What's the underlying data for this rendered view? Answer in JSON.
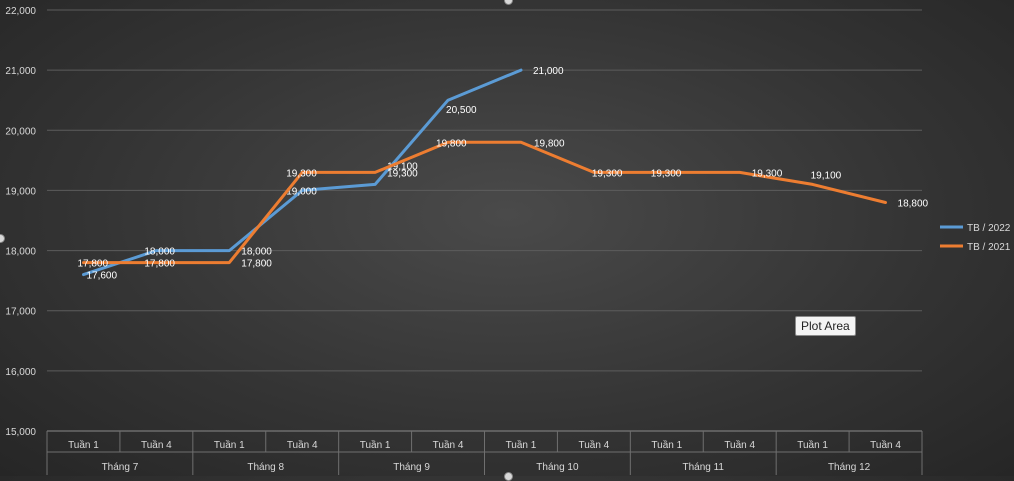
{
  "chart_data": {
    "type": "line",
    "title": "",
    "xlabel": "",
    "ylabel": "",
    "ylim": [
      15000,
      22000
    ],
    "y_ticks": [
      "15,000",
      "16,000",
      "17,000",
      "18,000",
      "19,000",
      "20,000",
      "21,000",
      "22,000"
    ],
    "categories": [
      "Tuần 1",
      "Tuần 4",
      "Tuần 1",
      "Tuần 4",
      "Tuần 1",
      "Tuần 4",
      "Tuần 1",
      "Tuần 4",
      "Tuần 1",
      "Tuần 4",
      "Tuần 1",
      "Tuần 4"
    ],
    "groups": [
      "Tháng 7",
      "Tháng 8",
      "Tháng 9",
      "Tháng 10",
      "Tháng 11",
      "Tháng 12"
    ],
    "grid": true,
    "legend_position": "right",
    "series": [
      {
        "name": "TB / 2022",
        "color": "#5b9bd5",
        "values": [
          17600,
          18000,
          18000,
          19000,
          19100,
          20500,
          21000,
          null,
          null,
          null,
          null,
          null
        ],
        "labels": [
          "17,600",
          "18,000",
          "18,000",
          "19,000",
          "19,100",
          "20,500",
          "21,000",
          null,
          null,
          null,
          null,
          null
        ]
      },
      {
        "name": "TB / 2021",
        "color": "#ed7d31",
        "values": [
          17800,
          17800,
          17800,
          19300,
          19300,
          19800,
          19800,
          19300,
          19300,
          19300,
          19100,
          18800
        ],
        "labels": [
          "17,800",
          "17,800",
          "17,800",
          "19,300",
          "19,300",
          "19,800",
          "19,800",
          "19,300",
          "19,300",
          "19,300",
          "19,100",
          "18,800"
        ]
      }
    ]
  },
  "tooltip": {
    "text": "Plot Area"
  }
}
